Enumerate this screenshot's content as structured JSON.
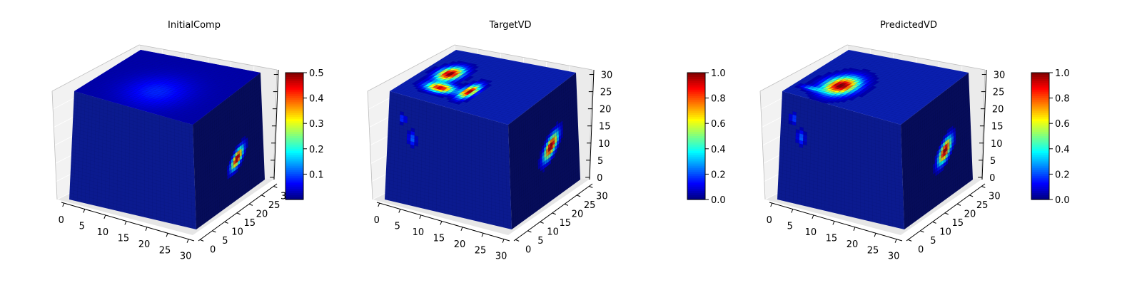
{
  "figure": {
    "background": "#ffffff"
  },
  "chart_data": [
    {
      "type": "heatmap",
      "subtype": "3d-voxel-cube",
      "title": "InitialComp",
      "x_ticks": [
        "0",
        "5",
        "10",
        "15",
        "20",
        "25",
        "30"
      ],
      "y_ticks": [
        "0",
        "5",
        "10",
        "15",
        "20",
        "25",
        "30"
      ],
      "z_ticks": [],
      "z_tick_count": 7,
      "grid": true,
      "colormap": "jet",
      "colorbar": {
        "min": 0.0,
        "max": 0.5,
        "ticks": [
          "0.1",
          "0.2",
          "0.3",
          "0.4",
          "0.5"
        ],
        "tick_values": [
          0.1,
          0.2,
          0.3,
          0.4,
          0.5
        ]
      },
      "voxel_grid": 32,
      "top_face_max": 0.08,
      "hotspots": [
        {
          "face": "side",
          "u": 0.62,
          "v": 0.62,
          "ru": 0.11,
          "rv": 0.08,
          "peak": 0.5,
          "tilt": -0.5
        },
        {
          "face": "top",
          "u": 0.35,
          "v": 0.5,
          "ru": 0.35,
          "rv": 0.3,
          "peak": 0.06,
          "tilt": 0
        }
      ]
    },
    {
      "type": "heatmap",
      "subtype": "3d-voxel-cube",
      "title": "TargetVD",
      "x_ticks": [
        "0",
        "5",
        "10",
        "15",
        "20",
        "25",
        "30"
      ],
      "y_ticks": [
        "0",
        "5",
        "10",
        "15",
        "20",
        "25",
        "30"
      ],
      "z_ticks": [
        "0",
        "5",
        "10",
        "15",
        "20",
        "25",
        "30"
      ],
      "grid": true,
      "colormap": "jet",
      "colorbar": {
        "min": 0.0,
        "max": 1.0,
        "ticks": [
          "0.0",
          "0.2",
          "0.4",
          "0.6",
          "0.8",
          "1.0"
        ],
        "tick_values": [
          0.0,
          0.2,
          0.4,
          0.6,
          0.8,
          1.0
        ]
      },
      "voxel_grid": 32,
      "hotspots": [
        {
          "face": "top",
          "u": 0.55,
          "v": 0.2,
          "ru": 0.17,
          "rv": 0.1,
          "peak": 1.0,
          "tilt": 0
        },
        {
          "face": "top",
          "u": 0.28,
          "v": 0.27,
          "ru": 0.1,
          "rv": 0.13,
          "peak": 0.9,
          "tilt": 0
        },
        {
          "face": "top",
          "u": 0.34,
          "v": 0.48,
          "ru": 0.16,
          "rv": 0.06,
          "peak": 0.95,
          "tilt": 0
        },
        {
          "face": "side",
          "u": 0.6,
          "v": 0.5,
          "ru": 0.13,
          "rv": 0.1,
          "peak": 1.0,
          "tilt": -0.5
        },
        {
          "face": "front",
          "u": 0.12,
          "v": 0.22,
          "ru": 0.03,
          "rv": 0.05,
          "peak": 0.22,
          "tilt": 0
        },
        {
          "face": "front",
          "u": 0.2,
          "v": 0.38,
          "ru": 0.04,
          "rv": 0.08,
          "peak": 0.22,
          "tilt": 0
        }
      ]
    },
    {
      "type": "heatmap",
      "subtype": "3d-voxel-cube",
      "title": "PredictedVD",
      "x_ticks": [
        "0",
        "5",
        "10",
        "15",
        "20",
        "25",
        "30"
      ],
      "y_ticks": [
        "0",
        "5",
        "10",
        "15",
        "20",
        "25",
        "30"
      ],
      "z_ticks": [
        "0",
        "5",
        "10",
        "15",
        "20",
        "25",
        "30"
      ],
      "grid": true,
      "colormap": "jet",
      "colorbar": {
        "min": 0.0,
        "max": 1.0,
        "ticks": [
          "0.0",
          "0.2",
          "0.4",
          "0.6",
          "0.8",
          "1.0"
        ],
        "tick_values": [
          0.0,
          0.2,
          0.4,
          0.6,
          0.8,
          1.0
        ]
      },
      "voxel_grid": 32,
      "hotspots": [
        {
          "face": "top",
          "u": 0.35,
          "v": 0.3,
          "ru": 0.22,
          "rv": 0.14,
          "peak": 1.0,
          "tilt": 0
        },
        {
          "face": "top",
          "u": 0.18,
          "v": 0.15,
          "ru": 0.05,
          "rv": 0.1,
          "peak": 0.25,
          "tilt": 0
        },
        {
          "face": "side",
          "u": 0.62,
          "v": 0.55,
          "ru": 0.12,
          "rv": 0.1,
          "peak": 1.0,
          "tilt": -0.5
        },
        {
          "face": "front",
          "u": 0.1,
          "v": 0.22,
          "ru": 0.03,
          "rv": 0.06,
          "peak": 0.22,
          "tilt": 0
        },
        {
          "face": "front",
          "u": 0.17,
          "v": 0.38,
          "ru": 0.04,
          "rv": 0.08,
          "peak": 0.22,
          "tilt": 0
        }
      ]
    }
  ]
}
